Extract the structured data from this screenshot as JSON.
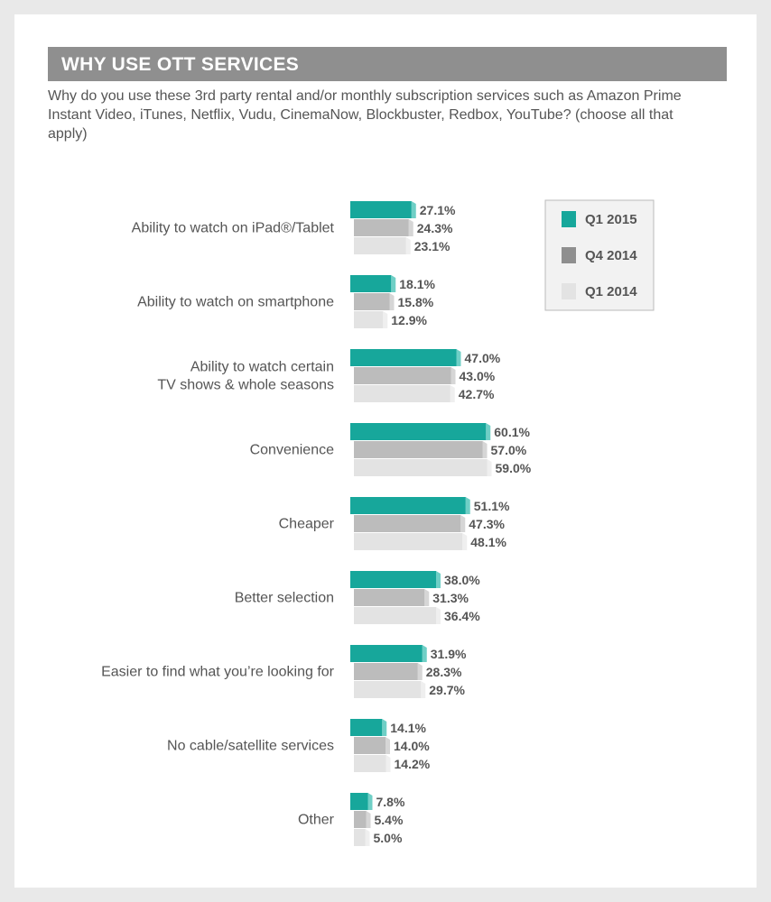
{
  "title": "WHY USE OTT SERVICES",
  "question": "Why do you use these 3rd party rental and/or monthly subscription services such as Amazon Prime Instant Video, iTunes, Netflix, Vudu, CinemaNow, Blockbuster, Redbox, YouTube? (choose all that apply)",
  "colors": {
    "series_0": "#17a79b",
    "series_0_edge": "#6fcfc6",
    "series_1": "#bcbcbc",
    "series_2": "#e3e3e3",
    "legend_1": "#8f8f8f",
    "value_label": "#555555",
    "category_label": "#555555",
    "legend_border": "#bbbbbb",
    "legend_bg": "#f2f2f2"
  },
  "chart_data": {
    "type": "bar",
    "orientation": "horizontal",
    "categories": [
      [
        "Ability to watch on iPad®/Tablet"
      ],
      [
        "Ability to watch on smartphone"
      ],
      [
        "Ability to watch certain",
        "TV shows & whole seasons"
      ],
      [
        "Convenience"
      ],
      [
        "Cheaper"
      ],
      [
        "Better selection"
      ],
      [
        "Easier to find what you’re looking for"
      ],
      [
        "No cable/satellite services"
      ],
      [
        "Other"
      ]
    ],
    "series": [
      {
        "name": "Q1 2015",
        "values": [
          27.1,
          18.1,
          47.0,
          60.1,
          51.1,
          38.0,
          31.9,
          14.1,
          7.8
        ]
      },
      {
        "name": "Q4 2014",
        "values": [
          24.3,
          15.8,
          43.0,
          57.0,
          47.3,
          31.3,
          28.3,
          14.0,
          5.4
        ]
      },
      {
        "name": "Q1 2014",
        "values": [
          23.1,
          12.9,
          42.7,
          59.0,
          48.1,
          36.4,
          29.7,
          14.2,
          5.0
        ]
      }
    ],
    "value_labels": [
      [
        "27.1%",
        "18.1%",
        "47.0%",
        "60.1%",
        "51.1%",
        "38.0%",
        "31.9%",
        "14.1%",
        "7.8%"
      ],
      [
        "24.3%",
        "15.8%",
        "43.0%",
        "57.0%",
        "47.3%",
        "31.3%",
        "28.3%",
        "14.0%",
        "5.4%"
      ],
      [
        "23.1%",
        "12.9%",
        "42.7%",
        "59.0%",
        "48.1%",
        "36.4%",
        "29.7%",
        "14.2%",
        "5.0%"
      ]
    ],
    "unit": "%",
    "legend_position": "top-right",
    "grid": false
  }
}
